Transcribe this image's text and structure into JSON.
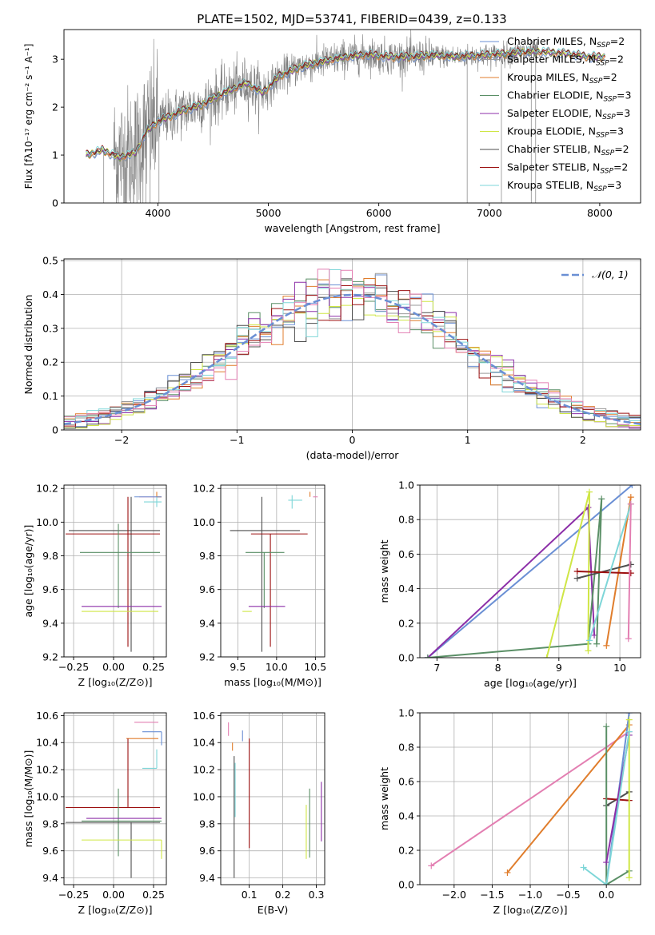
{
  "figure_title": "PLATE=1502, MJD=53741, FIBERID=0439, z=0.133",
  "palette": {
    "chabrier_miles": "#6a8fd4",
    "salpeter_miles": "#9a9a9a",
    "kroupa_miles": "#e07d2c",
    "chabrier_elodie": "#5a8f66",
    "salpeter_elodie": "#8c2fa8",
    "kroupa_elodie": "#cfe645",
    "chabrier_stelib": "#4d4d4d",
    "salpeter_stelib": "#9c1010",
    "kroupa_stelib": "#7ed6d8",
    "extra_pink": "#e37fb2",
    "observed_spectrum": "#808080",
    "normal_curve": "#6a8fd4",
    "grid": "#b0b0b0"
  },
  "chart_data": [
    {
      "id": "spectrum",
      "type": "line",
      "title": "PLATE=1502, MJD=53741, FIBERID=0439, z=0.133",
      "xlabel": "wavelength [Angstrom, rest frame]",
      "ylabel": "Flux [fλ10⁻¹⁷ erg cm⁻² s⁻¹ A⁻¹]",
      "xlim": [
        3150,
        8370
      ],
      "ylim": [
        0,
        3.62
      ],
      "xticks": [
        4000,
        5000,
        6000,
        7000,
        8000
      ],
      "yticks": [
        0,
        1,
        2,
        3
      ],
      "grid": false,
      "legend_position": "top-right",
      "legend": [
        {
          "label": "Chabrier MILES, N",
          "sub": "SSP",
          "suffix": "=2",
          "color": "chabrier_miles"
        },
        {
          "label": "Salpeter MILES, N",
          "sub": "SSP",
          "suffix": "=2",
          "color": "salpeter_miles"
        },
        {
          "label": "Kroupa MILES, N",
          "sub": "SSP",
          "suffix": "=2",
          "color": "kroupa_miles"
        },
        {
          "label": "Chabrier ELODIE, N",
          "sub": "SSP",
          "suffix": "=3",
          "color": "chabrier_elodie"
        },
        {
          "label": "Salpeter ELODIE, N",
          "sub": "SSP",
          "suffix": "=3",
          "color": "salpeter_elodie"
        },
        {
          "label": "Kroupa ELODIE, N",
          "sub": "SSP",
          "suffix": "=3",
          "color": "kroupa_elodie"
        },
        {
          "label": "Chabrier STELIB, N",
          "sub": "SSP",
          "suffix": "=2",
          "color": "chabrier_stelib"
        },
        {
          "label": "Salpeter STELIB, N",
          "sub": "SSP",
          "suffix": "=2",
          "color": "salpeter_stelib"
        },
        {
          "label": "Kroupa STELIB, N",
          "sub": "SSP",
          "suffix": "=3",
          "color": "kroupa_stelib"
        }
      ],
      "continuum": {
        "x": [
          3350,
          3500,
          3650,
          3800,
          3900,
          4000,
          4100,
          4250,
          4400,
          4600,
          4800,
          4950,
          5100,
          5300,
          5500,
          5700,
          5900,
          6100,
          6300,
          6500,
          6700,
          6900,
          7100,
          7300,
          7500,
          7700,
          7900,
          8050
        ],
        "y": [
          1.0,
          1.1,
          0.95,
          1.05,
          1.5,
          1.7,
          1.8,
          1.95,
          2.05,
          2.3,
          2.5,
          2.3,
          2.65,
          2.85,
          2.95,
          3.05,
          3.1,
          3.05,
          3.05,
          3.08,
          3.05,
          3.08,
          3.1,
          3.15,
          3.15,
          3.12,
          3.05,
          3.05
        ]
      },
      "observed_range": [
        3600,
        7450
      ]
    },
    {
      "id": "residuals",
      "type": "histogram",
      "xlabel": "(data-model)/error",
      "ylabel": "Normed distribution",
      "xlim": [
        -2.5,
        2.5
      ],
      "ylim": [
        0,
        0.505
      ],
      "xticks": [
        -2,
        -1,
        0,
        1,
        2
      ],
      "yticks": [
        0.0,
        0.1,
        0.2,
        0.3,
        0.4,
        0.5
      ],
      "grid": true,
      "bin_width": 0.1,
      "legend_position": "top-right",
      "legend": [
        {
          "label": "𝒩(0, 1)",
          "color": "normal_curve"
        }
      ],
      "normal_mean": 0,
      "normal_sigma": 1
    },
    {
      "id": "age-vs-Z",
      "type": "errorbar",
      "xlabel": "Z [log₁₀(Z/Z⊙)]",
      "ylabel": "age  [log₁₀(age/yr)]",
      "xlim": [
        -0.31,
        0.33
      ],
      "ylim": [
        9.2,
        10.22
      ],
      "xticks": [
        -0.25,
        0.0,
        0.25
      ],
      "xticklabels": [
        "−0.25",
        "0.00",
        "0.25"
      ],
      "yticks": [
        9.2,
        9.4,
        9.6,
        9.8,
        10.0,
        10.2
      ],
      "yticklabels": [
        "9.2",
        "9.4",
        "9.6",
        "9.8",
        "10.0",
        "10.2"
      ],
      "grid": true,
      "points": [
        {
          "x": 0.3,
          "y": 10.15,
          "xerr": [
            0.14,
            0.0
          ],
          "yerr": [
            0.0,
            0.0
          ],
          "color": "extra_pink"
        },
        {
          "x": 0.27,
          "y": 10.15,
          "xerr": [
            0.0,
            0.03
          ],
          "yerr": [
            0.0,
            0.03
          ],
          "color": "kroupa_miles"
        },
        {
          "x": 0.27,
          "y": 10.12,
          "xerr": [
            0.08,
            0.03
          ],
          "yerr": [
            0.03,
            0.03
          ],
          "color": "kroupa_stelib"
        },
        {
          "x": 0.11,
          "y": 9.95,
          "xerr": [
            0.39,
            0.18
          ],
          "yerr": [
            0.72,
            0.2
          ],
          "color": "chabrier_stelib"
        },
        {
          "x": 0.09,
          "y": 9.93,
          "xerr": [
            0.39,
            0.2
          ],
          "yerr": [
            0.67,
            0.22
          ],
          "color": "salpeter_stelib"
        },
        {
          "x": 0.03,
          "y": 9.82,
          "xerr": [
            0.24,
            0.26
          ],
          "yerr": [
            0.33,
            0.17
          ],
          "color": "chabrier_elodie"
        },
        {
          "x": 0.28,
          "y": 9.47,
          "xerr": [
            0.48,
            0.0
          ],
          "yerr": [
            0.0,
            0.0
          ],
          "color": "kroupa_elodie"
        },
        {
          "x": 0.3,
          "y": 9.5,
          "xerr": [
            0.5,
            0.0
          ],
          "yerr": [
            0.0,
            0.0
          ],
          "color": "salpeter_elodie"
        },
        {
          "x": 0.24,
          "y": 10.15,
          "xerr": [
            0.11,
            0.06
          ],
          "yerr": [
            0.0,
            0.0
          ],
          "color": "chabrier_miles"
        }
      ]
    },
    {
      "id": "age-vs-mass",
      "type": "errorbar",
      "xlabel": "mass [log₁₀(M/M⊙)]",
      "ylabel": "",
      "xlim": [
        9.28,
        10.62
      ],
      "ylim": [
        9.2,
        10.22
      ],
      "xticks": [
        9.5,
        10.0,
        10.5
      ],
      "xticklabels": [
        "9.5",
        "10.0",
        "10.5"
      ],
      "yticks": [
        9.2,
        9.4,
        9.6,
        9.8,
        10.0,
        10.2
      ],
      "yticklabels": [
        "9.2",
        "9.4",
        "9.6",
        "9.8",
        "10.0",
        "10.2"
      ],
      "grid": true,
      "points": [
        {
          "x": 9.81,
          "y": 9.95,
          "xerr": [
            0.41,
            0.49
          ],
          "yerr": [
            0.72,
            0.2
          ],
          "color": "chabrier_stelib"
        },
        {
          "x": 9.92,
          "y": 9.93,
          "xerr": [
            0.25,
            0.48
          ],
          "yerr": [
            0.67,
            0.0
          ],
          "color": "salpeter_stelib"
        },
        {
          "x": 9.84,
          "y": 9.82,
          "xerr": [
            0.24,
            0.26
          ],
          "yerr": [
            0.33,
            0.0
          ],
          "color": "chabrier_elodie"
        },
        {
          "x": 9.68,
          "y": 9.47,
          "xerr": [
            0.12,
            0.0
          ],
          "yerr": [
            0.0,
            0.0
          ],
          "color": "kroupa_elodie"
        },
        {
          "x": 9.86,
          "y": 9.5,
          "xerr": [
            0.22,
            0.25
          ],
          "yerr": [
            0.0,
            0.0
          ],
          "color": "salpeter_elodie"
        },
        {
          "x": 10.2,
          "y": 10.13,
          "xerr": [
            0.05,
            0.13
          ],
          "yerr": [
            0.05,
            0.03
          ],
          "color": "kroupa_stelib"
        },
        {
          "x": 10.5,
          "y": 10.15,
          "xerr": [
            0.03,
            0.03
          ],
          "yerr": [
            0.0,
            0.0
          ],
          "color": "extra_pink"
        },
        {
          "x": 10.43,
          "y": 10.15,
          "xerr": [
            0.0,
            0.0
          ],
          "yerr": [
            0.0,
            0.03
          ],
          "color": "kroupa_miles"
        }
      ]
    },
    {
      "id": "mass-weight-vs-age",
      "type": "line",
      "xlabel": "age  [log₁₀(age/yr)]",
      "ylabel": "mass weight",
      "xlim": [
        6.72,
        10.34
      ],
      "ylim": [
        0.0,
        1.0
      ],
      "xticks": [
        7,
        8,
        9,
        10
      ],
      "xticklabels": [
        "7",
        "8",
        "9",
        "10"
      ],
      "yticks": [
        0.0,
        0.2,
        0.4,
        0.6,
        0.8,
        1.0
      ],
      "yticklabels": [
        "0.0",
        "0.2",
        "0.4",
        "0.6",
        "0.8",
        "1.0"
      ],
      "grid": true,
      "series": [
        {
          "color": "chabrier_miles",
          "x": [
            6.85,
            10.2
          ],
          "y": [
            0.0,
            1.0
          ]
        },
        {
          "color": "salpeter_elodie",
          "x": [
            6.85,
            9.48,
            9.58
          ],
          "y": [
            0.0,
            0.87,
            0.13
          ]
        },
        {
          "color": "chabrier_elodie",
          "x": [
            6.85,
            9.48,
            9.7,
            9.62
          ],
          "y": [
            0.0,
            0.08,
            0.92,
            0.08
          ]
        },
        {
          "color": "kroupa_elodie",
          "x": [
            8.8,
            9.5,
            9.48
          ],
          "y": [
            0.0,
            0.96,
            0.04
          ]
        },
        {
          "color": "kroupa_miles",
          "x": [
            9.78,
            10.18
          ],
          "y": [
            0.07,
            0.93
          ]
        },
        {
          "color": "chabrier_stelib",
          "x": [
            9.3,
            10.18
          ],
          "y": [
            0.46,
            0.54
          ]
        },
        {
          "color": "salpeter_stelib",
          "x": [
            9.3,
            10.18
          ],
          "y": [
            0.5,
            0.49
          ]
        },
        {
          "color": "kroupa_stelib",
          "x": [
            9.5,
            10.18
          ],
          "y": [
            0.1,
            0.89
          ]
        },
        {
          "color": "extra_pink",
          "x": [
            10.14,
            10.18
          ],
          "y": [
            0.11,
            0.89
          ]
        }
      ]
    },
    {
      "id": "mass-vs-Z",
      "type": "errorbar",
      "xlabel": "Z [log₁₀(Z/Z⊙)]",
      "ylabel": "mass [log₁₀(M/M⊙)]",
      "xlim": [
        -0.31,
        0.33
      ],
      "ylim": [
        9.35,
        10.62
      ],
      "xticks": [
        -0.25,
        0.0,
        0.25
      ],
      "xticklabels": [
        "−0.25",
        "0.00",
        "0.25"
      ],
      "yticks": [
        9.4,
        9.6,
        9.8,
        10.0,
        10.2,
        10.4,
        10.6
      ],
      "yticklabels": [
        "9.4",
        "9.6",
        "9.8",
        "10.0",
        "10.2",
        "10.4",
        "10.6"
      ],
      "grid": true,
      "points": [
        {
          "x": 0.28,
          "y": 10.55,
          "xerr": [
            0.15,
            0.0
          ],
          "yerr": [
            0.0,
            0.0
          ],
          "color": "extra_pink"
        },
        {
          "x": 0.3,
          "y": 10.48,
          "xerr": [
            0.12,
            0.0
          ],
          "yerr": [
            0.1,
            0.0
          ],
          "color": "chabrier_miles"
        },
        {
          "x": 0.25,
          "y": 10.43,
          "xerr": [
            0.17,
            0.03
          ],
          "yerr": [
            0.0,
            0.0
          ],
          "color": "kroupa_miles"
        },
        {
          "x": 0.27,
          "y": 10.21,
          "xerr": [
            0.09,
            0.0
          ],
          "yerr": [
            0.0,
            0.14
          ],
          "color": "kroupa_stelib"
        },
        {
          "x": 0.09,
          "y": 9.92,
          "xerr": [
            0.39,
            0.2
          ],
          "yerr": [
            0.0,
            0.51
          ],
          "color": "salpeter_stelib"
        },
        {
          "x": 0.03,
          "y": 9.82,
          "xerr": [
            0.23,
            0.27
          ],
          "yerr": [
            0.26,
            0.24
          ],
          "color": "chabrier_elodie"
        },
        {
          "x": 0.11,
          "y": 9.81,
          "xerr": [
            0.41,
            0.18
          ],
          "yerr": [
            0.41,
            0.0
          ],
          "color": "chabrier_stelib"
        },
        {
          "x": 0.3,
          "y": 9.84,
          "xerr": [
            0.47,
            0.0
          ],
          "yerr": [
            0.0,
            0.0
          ],
          "color": "salpeter_elodie"
        },
        {
          "x": 0.3,
          "y": 9.68,
          "xerr": [
            0.5,
            0.0
          ],
          "yerr": [
            0.14,
            0.0
          ],
          "color": "kroupa_elodie"
        }
      ]
    },
    {
      "id": "mass-vs-ebv",
      "type": "errorbar",
      "xlabel": "E(B-V)",
      "ylabel": "",
      "xlim": [
        0.015,
        0.325
      ],
      "ylim": [
        9.35,
        10.62
      ],
      "xticks": [
        0.1,
        0.2,
        0.3
      ],
      "xticklabels": [
        "0.1",
        "0.2",
        "0.3"
      ],
      "yticks": [
        9.4,
        9.6,
        9.8,
        10.0,
        10.2,
        10.4,
        10.6
      ],
      "yticklabels": [
        "9.4",
        "9.6",
        "9.8",
        "10.0",
        "10.2",
        "10.4",
        "10.6"
      ],
      "grid": true,
      "points": [
        {
          "x": 0.038,
          "y": 10.5,
          "xerr": [
            0,
            0
          ],
          "yerr": [
            0.05,
            0.05
          ],
          "color": "extra_pink"
        },
        {
          "x": 0.05,
          "y": 10.4,
          "xerr": [
            0,
            0
          ],
          "yerr": [
            0.06,
            0.0
          ],
          "color": "kroupa_miles"
        },
        {
          "x": 0.08,
          "y": 10.44,
          "xerr": [
            0,
            0
          ],
          "yerr": [
            0.03,
            0.05
          ],
          "color": "chabrier_miles"
        },
        {
          "x": 0.055,
          "y": 10.0,
          "xerr": [
            0,
            0
          ],
          "yerr": [
            0.6,
            0.3
          ],
          "color": "chabrier_stelib"
        },
        {
          "x": 0.058,
          "y": 10.0,
          "xerr": [
            0,
            0
          ],
          "yerr": [
            0.15,
            0.25
          ],
          "color": "kroupa_stelib"
        },
        {
          "x": 0.1,
          "y": 10.0,
          "xerr": [
            0,
            0
          ],
          "yerr": [
            0.38,
            0.43
          ],
          "color": "salpeter_stelib"
        },
        {
          "x": 0.27,
          "y": 9.76,
          "xerr": [
            0,
            0
          ],
          "yerr": [
            0.22,
            0.18
          ],
          "color": "kroupa_elodie"
        },
        {
          "x": 0.28,
          "y": 9.8,
          "xerr": [
            0,
            0
          ],
          "yerr": [
            0.25,
            0.26
          ],
          "color": "chabrier_elodie"
        },
        {
          "x": 0.315,
          "y": 9.9,
          "xerr": [
            0,
            0
          ],
          "yerr": [
            0.23,
            0.21
          ],
          "color": "salpeter_elodie"
        }
      ]
    },
    {
      "id": "mass-weight-vs-Z",
      "type": "line",
      "xlabel": "Z [log₁₀(Z/Z⊙)]",
      "ylabel": "mass weight",
      "xlim": [
        -2.45,
        0.45
      ],
      "ylim": [
        0.0,
        1.0
      ],
      "xticks": [
        -2.0,
        -1.5,
        -1.0,
        -0.5,
        0.0
      ],
      "xticklabels": [
        "−2.0",
        "−1.5",
        "−1.0",
        "−0.5",
        "0.0"
      ],
      "yticks": [
        0.0,
        0.2,
        0.4,
        0.6,
        0.8,
        1.0
      ],
      "yticklabels": [
        "0.0",
        "0.2",
        "0.4",
        "0.6",
        "0.8",
        "1.0"
      ],
      "grid": true,
      "series": [
        {
          "color": "extra_pink",
          "x": [
            -2.3,
            0.3
          ],
          "y": [
            0.11,
            0.89
          ]
        },
        {
          "color": "kroupa_miles",
          "x": [
            -1.3,
            0.3
          ],
          "y": [
            0.07,
            0.93
          ]
        },
        {
          "color": "chabrier_stelib",
          "x": [
            0.0,
            0.3
          ],
          "y": [
            0.46,
            0.54
          ]
        },
        {
          "color": "salpeter_stelib",
          "x": [
            0.0,
            0.3
          ],
          "y": [
            0.5,
            0.49
          ]
        },
        {
          "color": "chabrier_miles",
          "x": [
            0.0,
            0.3
          ],
          "y": [
            0.0,
            1.0
          ]
        },
        {
          "color": "chabrier_elodie",
          "x": [
            0.0,
            0.0,
            0.3
          ],
          "y": [
            0.92,
            0.0,
            0.08
          ]
        },
        {
          "color": "salpeter_elodie",
          "x": [
            0.0,
            0.3
          ],
          "y": [
            0.13,
            0.87
          ]
        },
        {
          "color": "kroupa_elodie",
          "x": [
            0.3,
            0.3
          ],
          "y": [
            0.96,
            0.04
          ]
        },
        {
          "color": "kroupa_stelib",
          "x": [
            -0.3,
            0.0,
            0.3
          ],
          "y": [
            0.1,
            0.0,
            0.89
          ]
        }
      ]
    }
  ]
}
